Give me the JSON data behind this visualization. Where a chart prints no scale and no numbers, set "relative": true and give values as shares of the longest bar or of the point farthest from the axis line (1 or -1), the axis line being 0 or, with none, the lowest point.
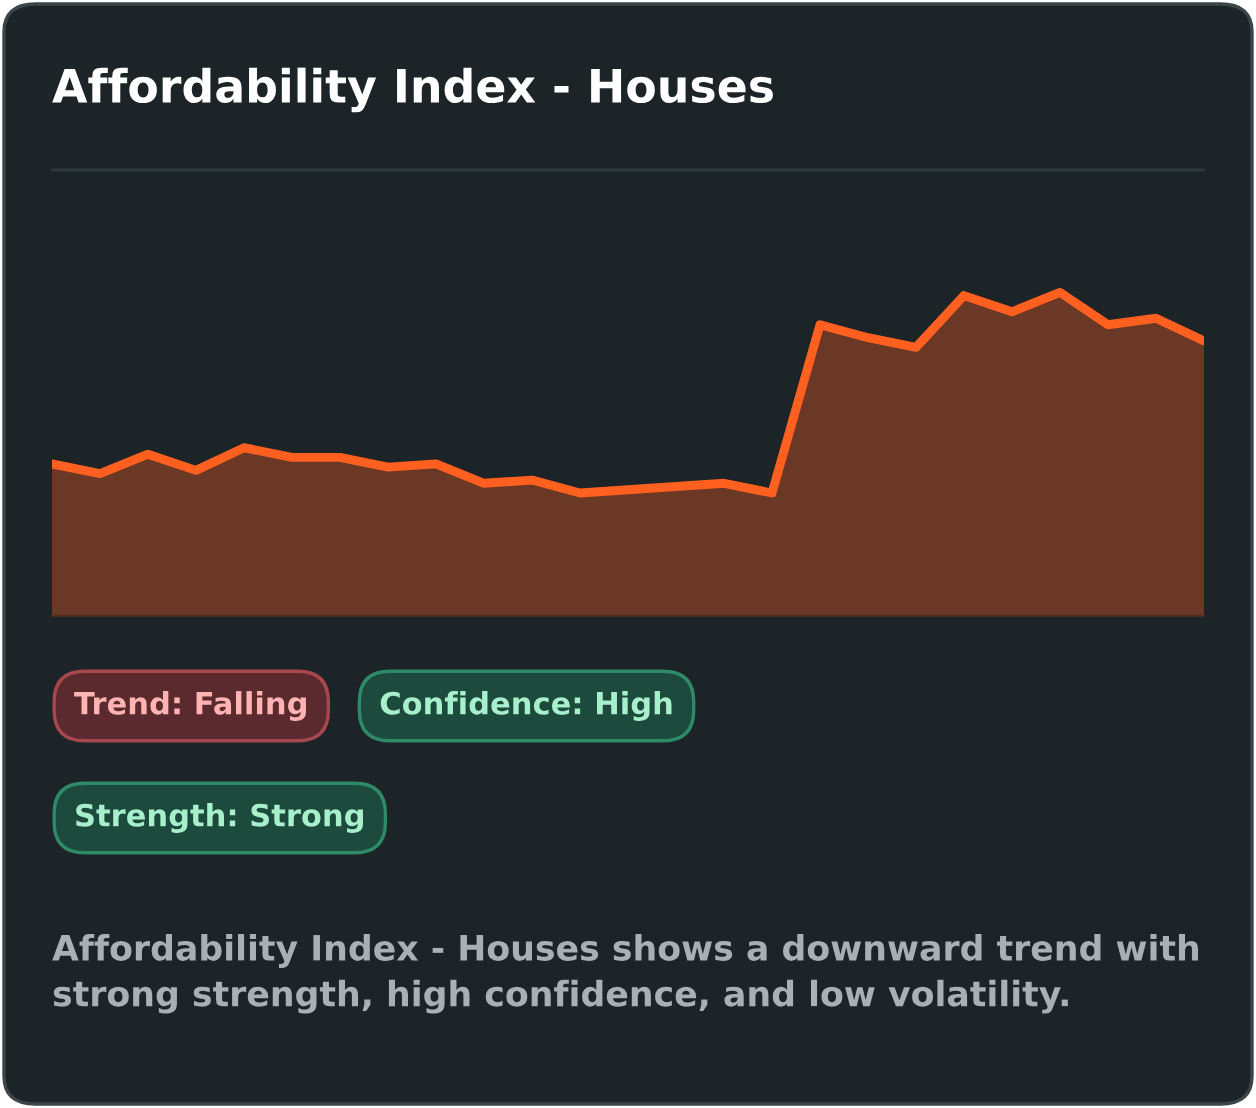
{
  "chart_data": {
    "type": "area",
    "title": "Affordability Index - Houses",
    "relative": true,
    "color": "#ff5f1f",
    "categories": [
      null,
      null,
      null,
      null,
      null,
      null,
      null,
      null,
      null,
      null,
      null,
      null,
      null,
      null,
      null,
      null,
      null,
      null,
      null,
      null,
      null,
      null,
      null,
      null,
      null
    ],
    "values": [
      0.47,
      0.44,
      0.5,
      0.45,
      0.52,
      0.49,
      0.49,
      0.46,
      0.47,
      0.41,
      0.42,
      0.38,
      0.39,
      0.4,
      0.41,
      0.38,
      0.9,
      0.86,
      0.83,
      0.99,
      0.94,
      1.0,
      0.9,
      0.92,
      0.85
    ],
    "annotations": [
      "Trend: Falling",
      "Confidence: High",
      "Strength: Strong",
      "Affordability Index - Houses shows a downward trend with strong strength, high confidence, and low volatility."
    ]
  }
}
